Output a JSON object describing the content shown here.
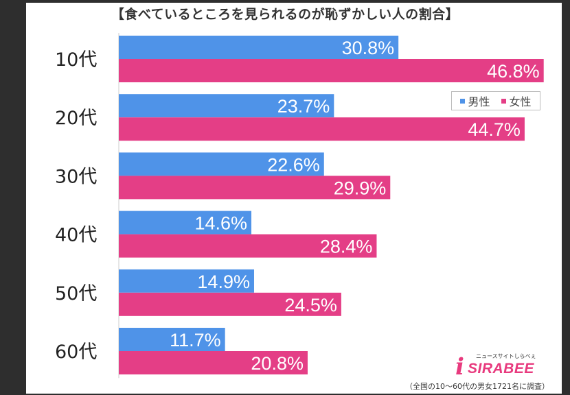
{
  "chart_data": {
    "type": "bar",
    "orientation": "horizontal",
    "title": "【食べているところを見られるのが恥ずかしい人の割合】",
    "categories": [
      "10代",
      "20代",
      "30代",
      "40代",
      "50代",
      "60代"
    ],
    "series": [
      {
        "name": "男性",
        "color": "#4f93e8",
        "values": [
          30.8,
          23.7,
          22.6,
          14.6,
          14.9,
          11.7
        ]
      },
      {
        "name": "女性",
        "color": "#e43e86",
        "values": [
          46.8,
          44.7,
          29.9,
          28.4,
          24.5,
          20.8
        ]
      }
    ],
    "value_suffix": "%",
    "xlim": [
      0,
      50
    ],
    "grid": false,
    "legend_position": "top-right",
    "data_labels": true
  },
  "brand": {
    "tagline": "ニュースサイトしらべぇ",
    "letter": "i",
    "name": "SIRABEE"
  },
  "footnote": "（全国の10〜60代の男女1721名に調査）"
}
